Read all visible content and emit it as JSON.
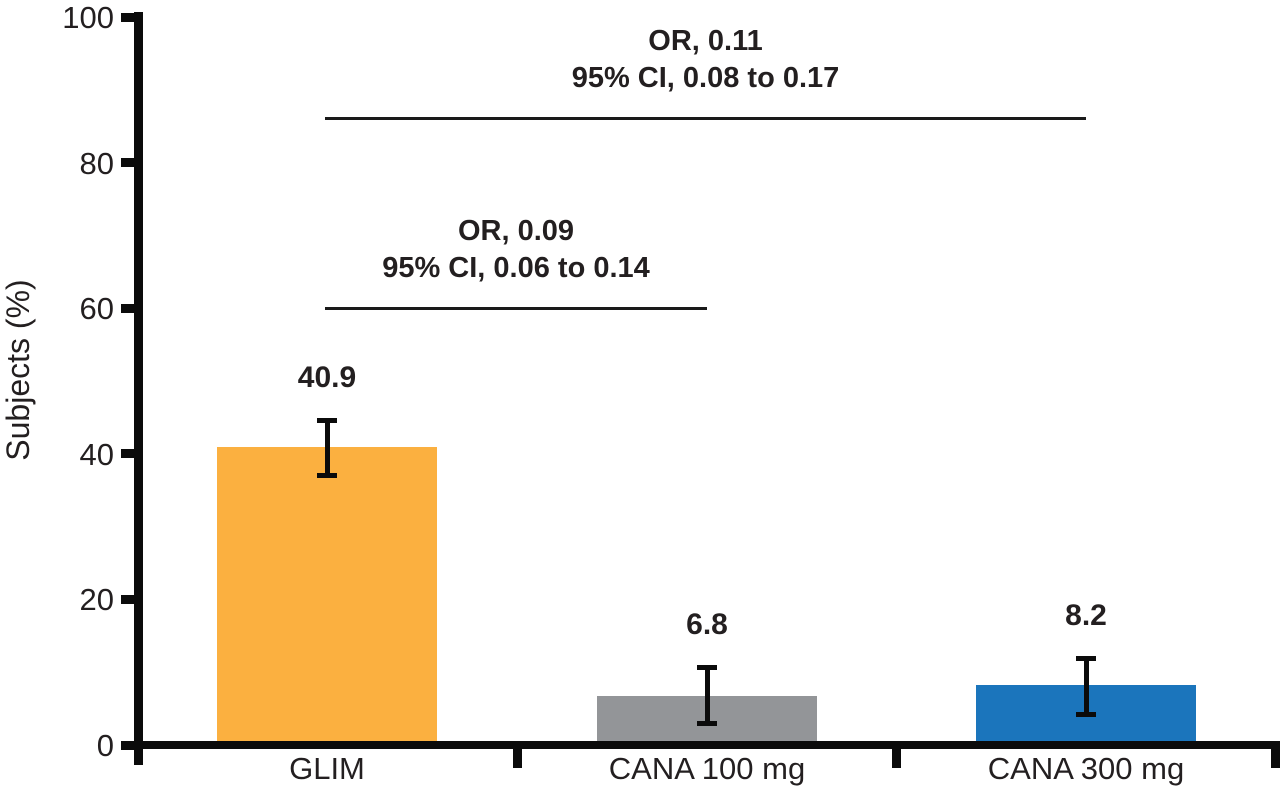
{
  "chart_data": {
    "type": "bar",
    "title": "",
    "xlabel": "",
    "ylabel": "Subjects (%)",
    "ylim": [
      0,
      100
    ],
    "yticks": [
      0,
      20,
      40,
      60,
      80,
      100
    ],
    "grid": false,
    "legend": null,
    "categories": [
      "GLIM",
      "CANA 100 mg",
      "CANA 300 mg"
    ],
    "values": [
      40.9,
      6.8,
      8.2
    ],
    "value_labels": [
      "40.9",
      "6.8",
      "8.2"
    ],
    "bar_colors": [
      "#FBB040",
      "#939598",
      "#1B75BC"
    ],
    "error_bars": [
      {
        "upper": 44.9,
        "lower": 36.7
      },
      {
        "upper": 11.0,
        "lower": 2.6
      },
      {
        "upper": 12.2,
        "lower": 3.8
      }
    ],
    "annotations": [
      {
        "or_label": "OR, 0.09",
        "ci_label": "95% CI, 0.06 to 0.14",
        "from_index": 0,
        "to_index": 1,
        "rule_value": 60.2
      },
      {
        "or_label": "OR, 0.11",
        "ci_label": "95% CI, 0.08 to 0.17",
        "from_index": 0,
        "to_index": 2,
        "rule_value": 86.3
      }
    ],
    "axis_color": "#0b0b0b",
    "text_color": "#231f20",
    "background_color": "#ffffff"
  }
}
